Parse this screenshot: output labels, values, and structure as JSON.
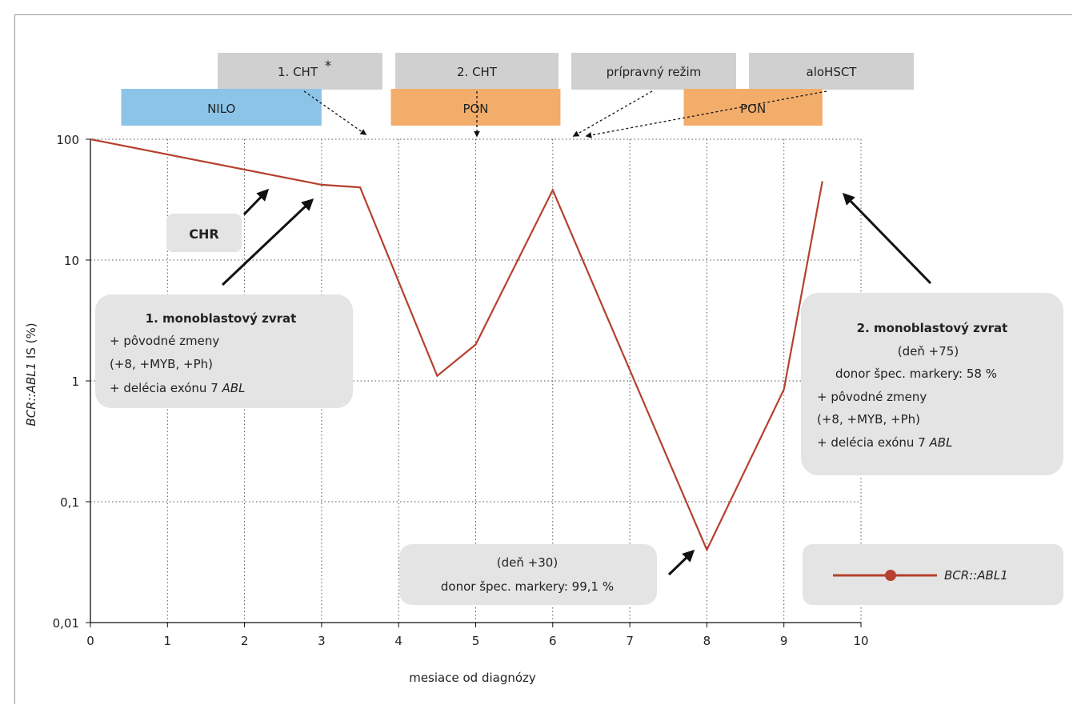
{
  "chart_data": {
    "type": "line",
    "xlabel": "mesiace od diagnózy",
    "ylabel": "BCR::ABL1 IS (%)",
    "yscale": "log",
    "xlim": [
      0,
      10
    ],
    "ylim": [
      0.01,
      100
    ],
    "x_ticks": [
      "0",
      "1",
      "2",
      "3",
      "4",
      "5",
      "6",
      "7",
      "8",
      "9",
      "10"
    ],
    "y_ticks": [
      "0,01",
      "0,1",
      "1",
      "10",
      "100"
    ],
    "grid": true,
    "series": [
      {
        "name": "BCR::ABL1",
        "color": "#b5412e",
        "points": [
          {
            "x": 0,
            "y": 100
          },
          {
            "x": 3,
            "y": 42
          },
          {
            "x": 3.5,
            "y": 40
          },
          {
            "x": 4.5,
            "y": 1.1
          },
          {
            "x": 5,
            "y": 2
          },
          {
            "x": 6,
            "y": 38
          },
          {
            "x": 8,
            "y": 0.04
          },
          {
            "x": 9,
            "y": 0.85
          },
          {
            "x": 9.5,
            "y": 45
          }
        ]
      }
    ],
    "legend": {
      "label": "BCR::ABL1",
      "placement": "bottom-right"
    },
    "therapy_top": [
      {
        "label": "1. CHT",
        "star": "*"
      },
      {
        "label": "2. CHT"
      },
      {
        "label": "prípravný režim"
      },
      {
        "label": "aloHSCT"
      }
    ],
    "therapy_bars": [
      {
        "label": "NILO",
        "x_start": 0.4,
        "x_end": 3.0,
        "color": "#8cc4e8"
      },
      {
        "label": "PON",
        "x_start": 3.9,
        "x_end": 6.1,
        "color": "#f2ad6b"
      },
      {
        "label": "PON",
        "x_start": 7.7,
        "x_end": 9.5,
        "color": "#f2ad6b"
      }
    ],
    "annotations": {
      "chr": "CHR",
      "relapse1": {
        "title": "1. monoblastový zvrat",
        "line1": "+ pôvodné zmeny",
        "line2": "(+8, +MYB, +Ph)",
        "line3_prefix": "+ delécia exónu 7 ",
        "line3_italic": "ABL"
      },
      "relapse2": {
        "title": "2. monoblastový zvrat",
        "line1": "(deň +75)",
        "line2": "donor špec. markery: 58 %",
        "line3": "+ pôvodné zmeny",
        "line4": "(+8, +MYB, +Ph)",
        "line5_prefix": "+ delécia exónu 7 ",
        "line5_italic": "ABL"
      },
      "day30": {
        "line1": "(deň +30)",
        "line2": "donor špec. markery: 99,1 %"
      }
    }
  }
}
